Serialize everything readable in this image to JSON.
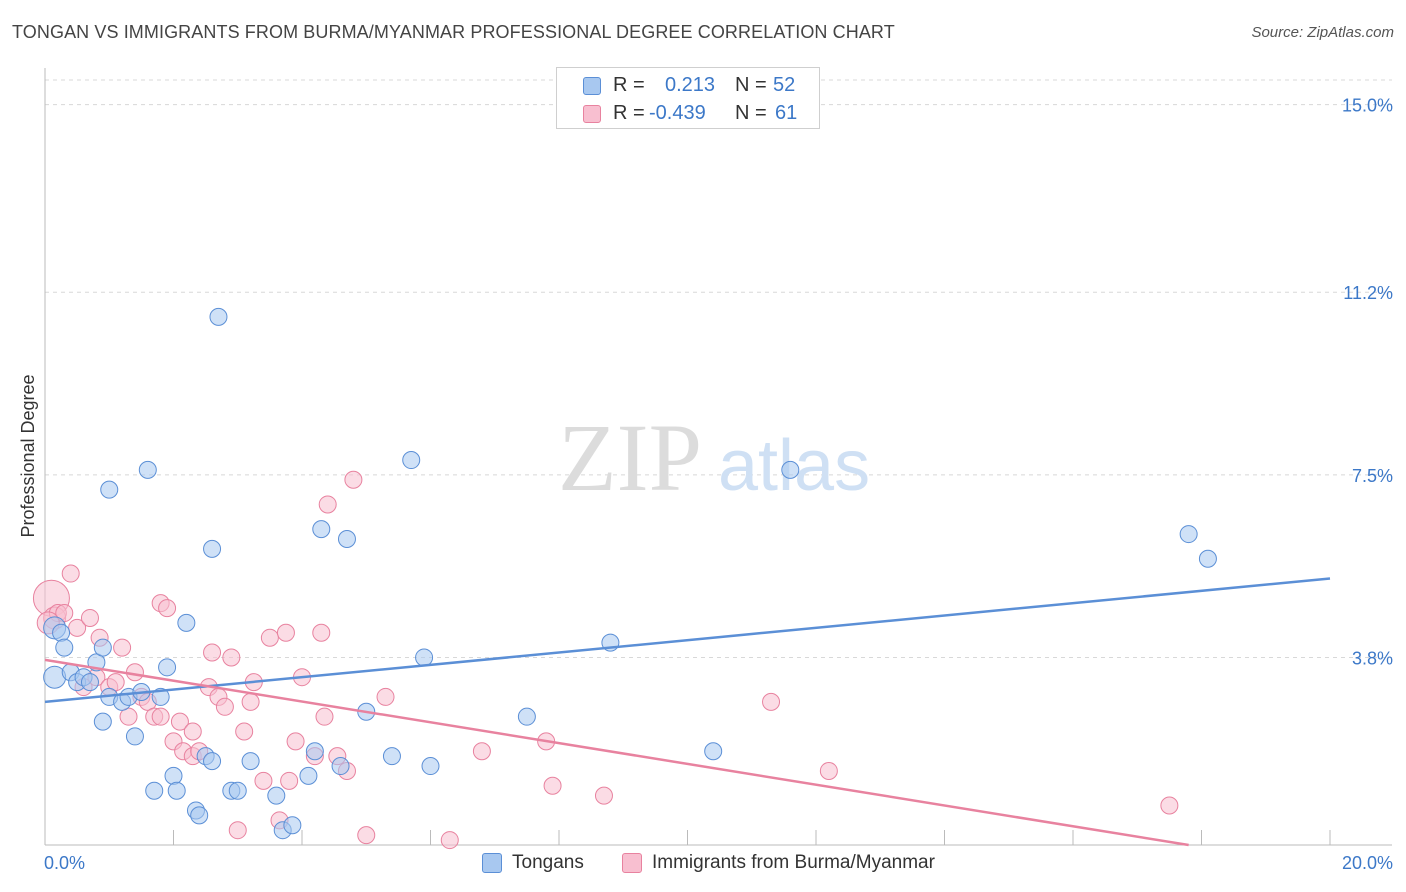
{
  "title": "TONGAN VS IMMIGRANTS FROM BURMA/MYANMAR PROFESSIONAL DEGREE CORRELATION CHART",
  "source": "Source: ZipAtlas.com",
  "watermark": {
    "zip": "ZIP",
    "atlas": "atlas"
  },
  "legend": {
    "rows": [
      {
        "r_label": "R =",
        "r_value": "0.213",
        "n_label": "N =",
        "n_value": "52",
        "color": "#a8c8f0",
        "stroke": "#5b8fd6"
      },
      {
        "r_label": "R =",
        "r_value": "-0.439",
        "n_label": "N =",
        "n_value": "61",
        "color": "#f8bfd0",
        "stroke": "#e8829f"
      }
    ]
  },
  "bottom_legend": [
    {
      "label": "Tongans",
      "color": "#a8c8f0",
      "stroke": "#5b8fd6"
    },
    {
      "label": "Immigrants from Burma/Myanmar",
      "color": "#f8bfd0",
      "stroke": "#e8829f"
    }
  ],
  "chart_data": {
    "type": "scatter",
    "title": "TONGAN VS IMMIGRANTS FROM BURMA/MYANMAR PROFESSIONAL DEGREE CORRELATION CHART",
    "xlabel": "",
    "ylabel": "Professional Degree",
    "xlim": [
      0,
      20
    ],
    "ylim": [
      0,
      15.5
    ],
    "x_tick_labels": [
      "0.0%",
      "20.0%"
    ],
    "y_ticks": [
      3.8,
      7.5,
      11.2,
      15.0
    ],
    "y_tick_labels": [
      "3.8%",
      "7.5%",
      "11.2%",
      "15.0%"
    ],
    "grid": true,
    "legend_position": "top-center",
    "series": [
      {
        "name": "Tongans",
        "color": "#5b8fd6",
        "fill": "#a8c8f0",
        "trend": {
          "x": [
            0,
            20
          ],
          "y": [
            2.9,
            5.4
          ]
        },
        "points": [
          [
            0.15,
            3.4
          ],
          [
            0.15,
            4.4
          ],
          [
            0.25,
            4.3
          ],
          [
            0.3,
            4.0
          ],
          [
            0.4,
            3.5
          ],
          [
            0.5,
            3.3
          ],
          [
            0.6,
            3.4
          ],
          [
            0.7,
            3.3
          ],
          [
            0.8,
            3.7
          ],
          [
            0.9,
            4.0
          ],
          [
            0.9,
            2.5
          ],
          [
            1.0,
            3.0
          ],
          [
            1.0,
            7.2
          ],
          [
            1.2,
            2.9
          ],
          [
            1.3,
            3.0
          ],
          [
            1.4,
            2.2
          ],
          [
            1.5,
            3.1
          ],
          [
            1.6,
            7.6
          ],
          [
            1.7,
            1.1
          ],
          [
            1.8,
            3.0
          ],
          [
            1.9,
            3.6
          ],
          [
            2.0,
            1.4
          ],
          [
            2.05,
            1.1
          ],
          [
            2.2,
            4.5
          ],
          [
            2.35,
            0.7
          ],
          [
            2.4,
            0.6
          ],
          [
            2.5,
            1.8
          ],
          [
            2.6,
            6.0
          ],
          [
            2.6,
            1.7
          ],
          [
            2.7,
            10.7
          ],
          [
            2.9,
            1.1
          ],
          [
            3.0,
            1.1
          ],
          [
            3.2,
            1.7
          ],
          [
            3.6,
            1.0
          ],
          [
            3.7,
            0.3
          ],
          [
            3.85,
            0.4
          ],
          [
            4.1,
            1.4
          ],
          [
            4.2,
            1.9
          ],
          [
            4.3,
            6.4
          ],
          [
            4.6,
            1.6
          ],
          [
            4.7,
            6.2
          ],
          [
            5.0,
            2.7
          ],
          [
            5.4,
            1.8
          ],
          [
            5.7,
            7.8
          ],
          [
            5.9,
            3.8
          ],
          [
            6.0,
            1.6
          ],
          [
            7.5,
            2.6
          ],
          [
            8.8,
            4.1
          ],
          [
            10.4,
            1.9
          ],
          [
            11.6,
            7.6
          ],
          [
            17.8,
            6.3
          ],
          [
            18.1,
            5.8
          ]
        ]
      },
      {
        "name": "Immigrants from Burma/Myanmar",
        "color": "#e8829f",
        "fill": "#f8bfd0",
        "trend": {
          "x": [
            0,
            17.8
          ],
          "y": [
            3.75,
            0.0
          ]
        },
        "points": [
          [
            0.1,
            5.0
          ],
          [
            0.15,
            4.6
          ],
          [
            0.2,
            4.7
          ],
          [
            0.3,
            4.7
          ],
          [
            0.4,
            5.5
          ],
          [
            0.5,
            4.4
          ],
          [
            0.6,
            3.2
          ],
          [
            0.7,
            4.6
          ],
          [
            0.8,
            3.4
          ],
          [
            0.85,
            4.2
          ],
          [
            1.0,
            3.2
          ],
          [
            1.1,
            3.3
          ],
          [
            1.2,
            4.0
          ],
          [
            1.3,
            2.6
          ],
          [
            1.4,
            3.5
          ],
          [
            1.5,
            3.0
          ],
          [
            1.6,
            2.9
          ],
          [
            1.7,
            2.6
          ],
          [
            1.8,
            2.6
          ],
          [
            1.8,
            4.9
          ],
          [
            1.9,
            4.8
          ],
          [
            2.0,
            2.1
          ],
          [
            2.1,
            2.5
          ],
          [
            2.15,
            1.9
          ],
          [
            2.3,
            1.8
          ],
          [
            2.3,
            2.3
          ],
          [
            2.4,
            1.9
          ],
          [
            2.55,
            3.2
          ],
          [
            2.6,
            3.9
          ],
          [
            2.7,
            3.0
          ],
          [
            2.8,
            2.8
          ],
          [
            2.9,
            3.8
          ],
          [
            3.0,
            0.3
          ],
          [
            3.1,
            2.3
          ],
          [
            3.2,
            2.9
          ],
          [
            3.25,
            3.3
          ],
          [
            3.4,
            1.3
          ],
          [
            3.5,
            4.2
          ],
          [
            3.65,
            0.5
          ],
          [
            3.75,
            4.3
          ],
          [
            3.8,
            1.3
          ],
          [
            3.9,
            2.1
          ],
          [
            4.0,
            3.4
          ],
          [
            4.2,
            1.8
          ],
          [
            4.3,
            4.3
          ],
          [
            4.35,
            2.6
          ],
          [
            4.4,
            6.9
          ],
          [
            4.55,
            1.8
          ],
          [
            4.7,
            1.5
          ],
          [
            4.8,
            7.4
          ],
          [
            5.0,
            0.2
          ],
          [
            5.3,
            3.0
          ],
          [
            6.3,
            0.1
          ],
          [
            6.8,
            1.9
          ],
          [
            7.8,
            2.1
          ],
          [
            7.9,
            1.2
          ],
          [
            8.7,
            1.0
          ],
          [
            11.3,
            2.9
          ],
          [
            12.2,
            1.5
          ],
          [
            17.5,
            0.8
          ],
          [
            0.05,
            4.5
          ]
        ]
      }
    ]
  }
}
